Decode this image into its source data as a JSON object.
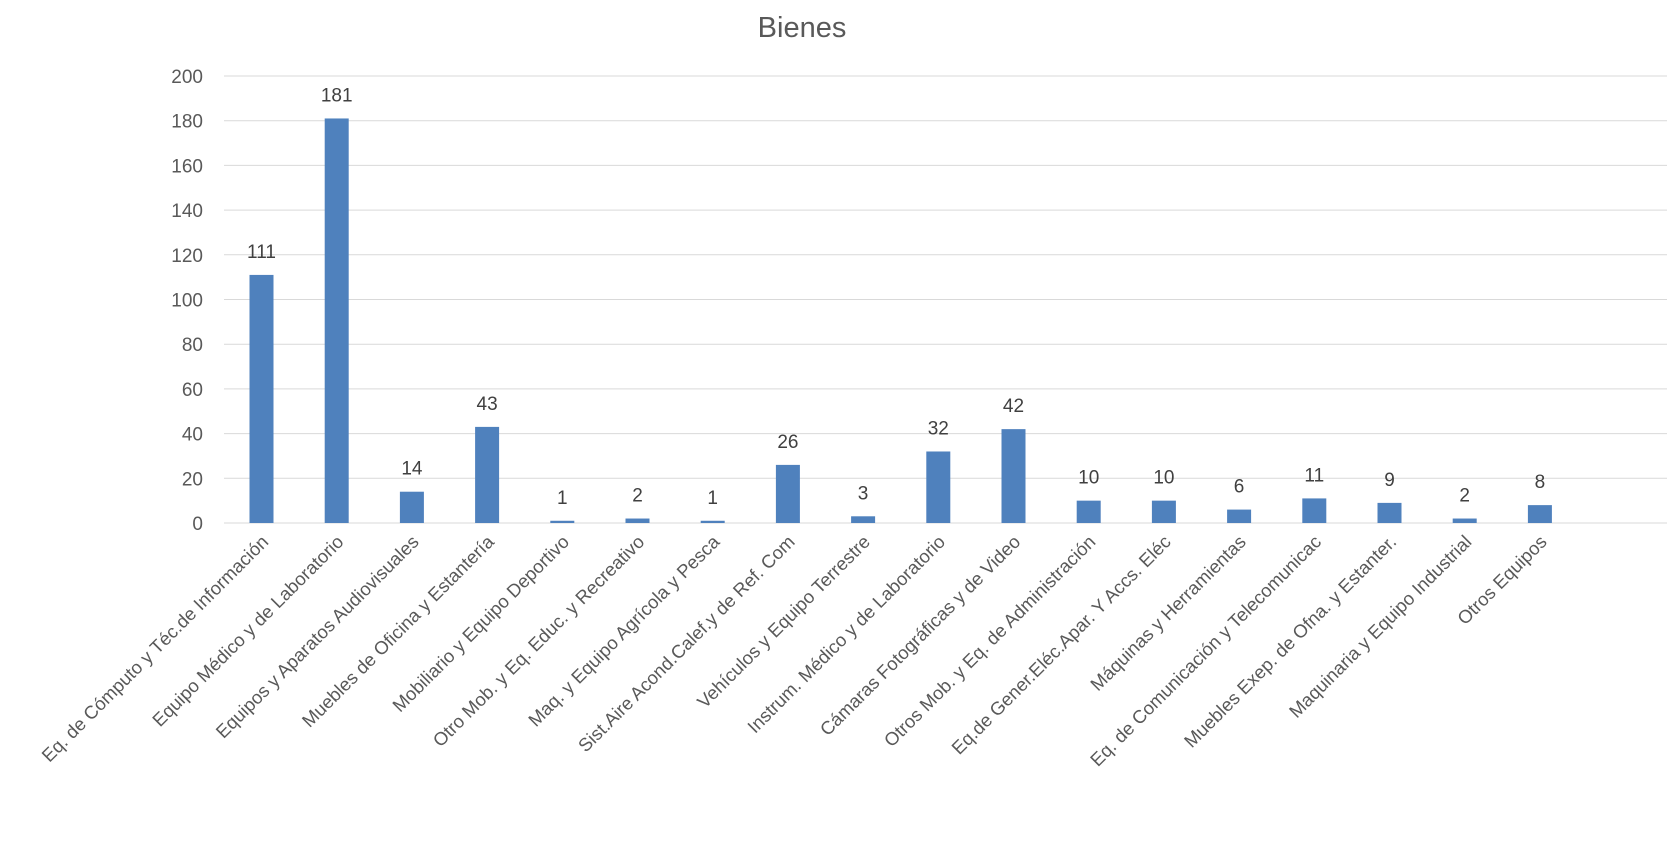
{
  "chart_data": {
    "type": "bar",
    "title": "Bienes",
    "xlabel": "",
    "ylabel": "",
    "ylim": [
      0,
      200
    ],
    "yticks": [
      0,
      20,
      40,
      60,
      80,
      100,
      120,
      140,
      160,
      180,
      200
    ],
    "grid": true,
    "legend": "none",
    "bar_color": "#4f81bd",
    "categories": [
      "Eq. de Cómputo y Téc.de Información",
      "Equipo Médico y de Laboratorio",
      "Equipos y Aparatos Audiovisuales",
      "Muebles de Oficina y Estantería",
      "Mobiliario y Equipo Deportivo",
      "Otro Mob. y Eq. Educ. y Recreativo",
      "Maq. y Equipo Agrícola y Pesca",
      "Sist.Aire Acond.Calef.y de Ref. Com",
      "Vehículos y Equipo Terrestre",
      "Instrum. Médico y de Laboratorio",
      "Cámaras Fotográficas y de Video",
      "Otros Mob. y Eq. de Administración",
      "Eq.de Gener.Eléc.Apar. Y Accs. Eléc",
      "Máquinas y Herramientas",
      "Eq. de Comunicación y Telecomunicac",
      "Muebles Exep. de Ofna. y Estanter.",
      "Maquinaria y Equipo Industrial",
      "Otros Equipos"
    ],
    "values": [
      111,
      181,
      14,
      43,
      1,
      2,
      1,
      26,
      3,
      32,
      42,
      10,
      10,
      6,
      11,
      9,
      2,
      8
    ]
  }
}
